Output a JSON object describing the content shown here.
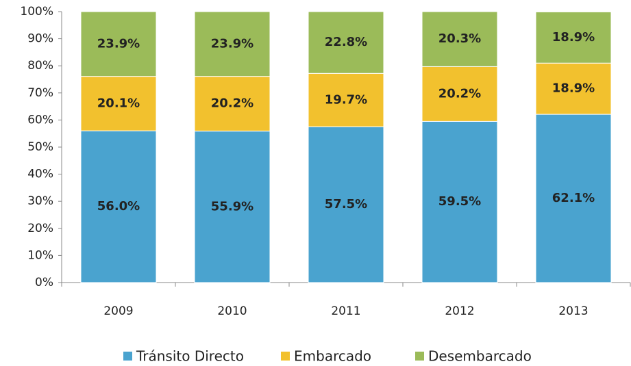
{
  "chart_data": {
    "type": "stacked_bar",
    "categories": [
      "2009",
      "2010",
      "2011",
      "2012",
      "2013"
    ],
    "series": [
      {
        "name": "Tránsito Directo",
        "color": "#4aa3cf",
        "values": [
          56.0,
          55.9,
          57.5,
          59.5,
          62.1
        ],
        "value_labels": [
          "56.0%",
          "55.9%",
          "57.5%",
          "59.5%",
          "62.1%"
        ]
      },
      {
        "name": "Embarcado",
        "color": "#f2c12e",
        "values": [
          20.1,
          20.2,
          19.7,
          20.2,
          18.9
        ],
        "value_labels": [
          "20.1%",
          "20.2%",
          "19.7%",
          "20.2%",
          "18.9%"
        ]
      },
      {
        "name": "Desembarcado",
        "color": "#9bbb59",
        "values": [
          23.9,
          23.9,
          22.8,
          20.3,
          18.9
        ],
        "value_labels": [
          "23.9%",
          "23.9%",
          "22.8%",
          "20.3%",
          "18.9%"
        ]
      }
    ],
    "ylim": [
      0,
      100
    ],
    "yticks": [
      {
        "value": 0,
        "label": "0%"
      },
      {
        "value": 10,
        "label": "10%"
      },
      {
        "value": 20,
        "label": "20%"
      },
      {
        "value": 30,
        "label": "30%"
      },
      {
        "value": 40,
        "label": "40%"
      },
      {
        "value": 50,
        "label": "50%"
      },
      {
        "value": 60,
        "label": "60%"
      },
      {
        "value": 70,
        "label": "70%"
      },
      {
        "value": 80,
        "label": "80%"
      },
      {
        "value": 90,
        "label": "90%"
      },
      {
        "value": 100,
        "label": "100%"
      }
    ],
    "grid": false,
    "legend": "bottom"
  }
}
